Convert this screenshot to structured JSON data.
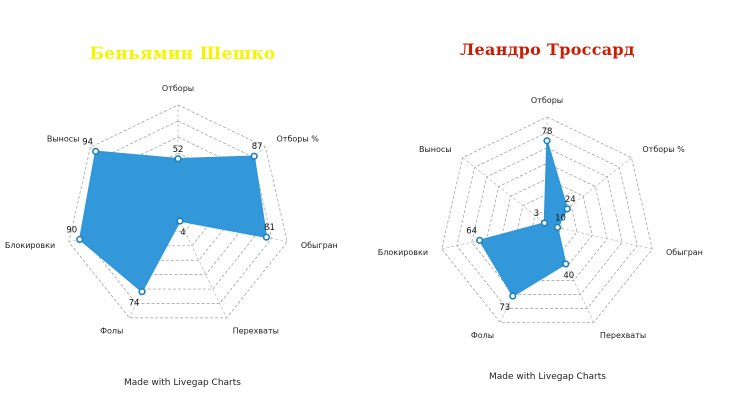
{
  "chart_data": [
    {
      "type": "radar",
      "title": "Беньямин Шешко",
      "title_color": "#f5f500",
      "fill_color": "#2f96d8",
      "axes": [
        "Отборы",
        "Отборы %",
        "Обыгран",
        "Перехваты",
        "Фолы",
        "Блокировки",
        "Выносы"
      ],
      "values": [
        52,
        87,
        81,
        4,
        74,
        90,
        94
      ],
      "rmax": 100,
      "rings": 7,
      "credit": "Made with Livegap Charts"
    },
    {
      "type": "radar",
      "title": "Леандро Троссард",
      "title_color": "#cc1b00",
      "fill_color": "#2f96d8",
      "axes": [
        "Отборы",
        "Отборы %",
        "Обыгран",
        "Перехваты",
        "Фолы",
        "Блокировки",
        "Выносы"
      ],
      "values": [
        78,
        24,
        10,
        40,
        73,
        64,
        3
      ],
      "rmax": 100,
      "rings": 7,
      "credit": "Made with Livegap Charts"
    }
  ]
}
